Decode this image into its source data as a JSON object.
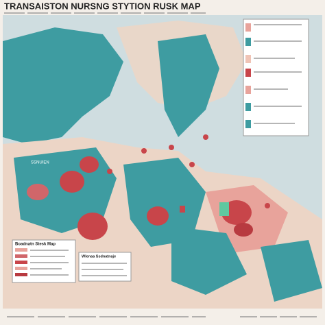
{
  "header": {
    "title": "TRANSAISTON NURSNG STYTION RUSK MAP"
  },
  "legend": {
    "title": "Boadnatn Stesk Map"
  },
  "inset": {
    "title": "Wlenaa Ssdnatnaje"
  },
  "map_label": "SSNUIEN"
}
